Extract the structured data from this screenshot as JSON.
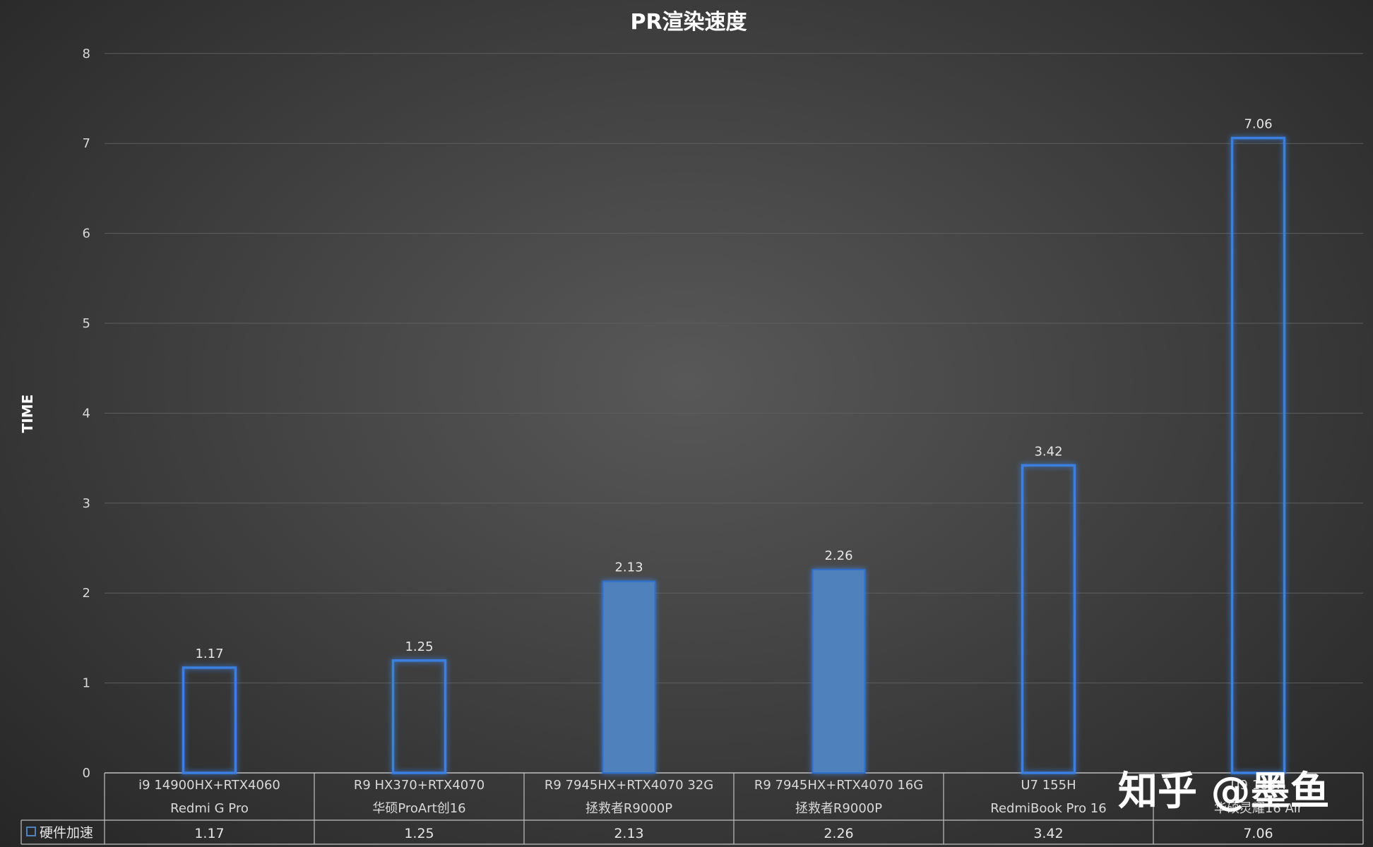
{
  "chart_data": {
    "type": "bar",
    "title": "PR渲染速度",
    "ylabel": "TIME",
    "xlabel": "",
    "ylim": [
      0,
      8
    ],
    "yticks": [
      "0",
      "1",
      "2",
      "3",
      "4",
      "5",
      "6",
      "7",
      "8"
    ],
    "grid": true,
    "categories": [
      [
        "i9 14900HX+RTX4060",
        "Redmi G Pro"
      ],
      [
        "R9 HX370+RTX4070",
        "华硕ProArt创16"
      ],
      [
        "R9 7945HX+RTX4070 32G",
        "拯救者R9000P"
      ],
      [
        "R9 7945HX+RTX4070 16G",
        "拯救者R9000P"
      ],
      [
        "U7 155H",
        "RedmiBook Pro 16"
      ],
      [
        "U9 185H",
        "华硕灵耀16 Air"
      ]
    ],
    "series": [
      {
        "name": "硬件加速",
        "values": [
          1.17,
          1.25,
          2.13,
          2.26,
          3.42,
          7.06
        ],
        "value_labels": [
          "1.17",
          "1.25",
          "2.13",
          "2.26",
          "3.42",
          "7.06"
        ],
        "filled": [
          false,
          false,
          true,
          true,
          false,
          false
        ],
        "color": "#4f81bd"
      }
    ],
    "data_table": true,
    "legend": "data-table-left"
  },
  "watermark": {
    "text": "知乎 @墨鱼"
  },
  "colors": {
    "bar": "#4f81bd",
    "bar_glow": "#3a7fe0",
    "grid": "#5e5e5e",
    "table_line": "#bfbfbf"
  }
}
